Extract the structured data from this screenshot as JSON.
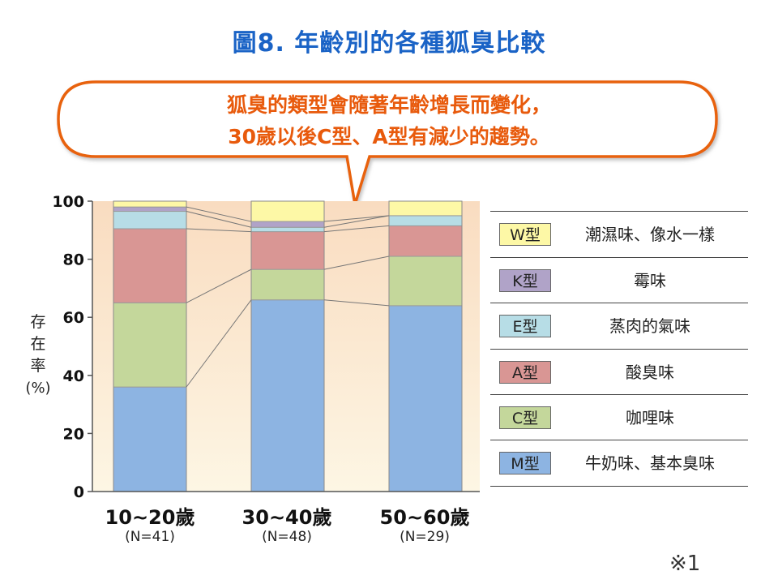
{
  "title": "圖8. 年齡別的各種狐臭比較",
  "callout": {
    "line1": "狐臭的類型會隨著年齡增長而變化，",
    "line2": "30歲以後C型、A型有減少的趨勢。"
  },
  "ylabel": "存在率(%)",
  "ylabel_parts": [
    "存",
    "在",
    "率",
    "(%)"
  ],
  "footnote": "※1",
  "legend": [
    {
      "code": "W型",
      "desc": "潮濕味、像水一樣",
      "color": "#fdf8a6"
    },
    {
      "code": "K型",
      "desc": "霉味",
      "color": "#b0a3c8"
    },
    {
      "code": "E型",
      "desc": "蒸肉的氣味",
      "color": "#b7dde6"
    },
    {
      "code": "A型",
      "desc": "酸臭味",
      "color": "#d99694"
    },
    {
      "code": "C型",
      "desc": "咖哩味",
      "color": "#c4d79b"
    },
    {
      "code": "M型",
      "desc": "牛奶味、基本臭味",
      "color": "#8db4e2"
    }
  ],
  "chart_data": {
    "type": "bar",
    "stacked": true,
    "categories": [
      "10~20歲",
      "30~40歲",
      "50~60歲"
    ],
    "category_notes": [
      "(N=41)",
      "(N=48)",
      "(N=29)"
    ],
    "ylim": [
      0,
      100
    ],
    "yticks": [
      0,
      20,
      40,
      60,
      80,
      100
    ],
    "series": [
      {
        "name": "M型",
        "color": "#8db4e2",
        "values": [
          36,
          66,
          64
        ]
      },
      {
        "name": "C型",
        "color": "#c4d79b",
        "values": [
          29,
          10.5,
          17
        ]
      },
      {
        "name": "A型",
        "color": "#d99694",
        "values": [
          25.5,
          13,
          10.5
        ]
      },
      {
        "name": "E型",
        "color": "#b7dde6",
        "values": [
          6,
          1.5,
          3.5
        ]
      },
      {
        "name": "K型",
        "color": "#b0a3c8",
        "values": [
          1.5,
          2,
          0
        ]
      },
      {
        "name": "W型",
        "color": "#fdf8a6",
        "values": [
          2,
          7,
          5
        ]
      }
    ]
  }
}
